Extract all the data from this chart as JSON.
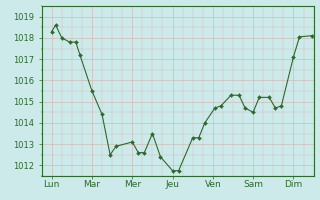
{
  "x_labels": [
    "Lun",
    "Mar",
    "Mer",
    "Jeu",
    "Ven",
    "Sam",
    "Dim"
  ],
  "x_positions": [
    0,
    1,
    2,
    3,
    4,
    5,
    6
  ],
  "data_x": [
    0.0,
    0.1,
    0.25,
    0.45,
    0.6,
    0.7,
    1.0,
    1.25,
    1.45,
    1.6,
    2.0,
    2.15,
    2.3,
    2.5,
    2.7,
    3.0,
    3.15,
    3.5,
    3.65,
    3.8,
    4.05,
    4.2,
    4.45,
    4.65,
    4.8,
    5.0,
    5.15,
    5.4,
    5.55,
    5.7,
    6.0,
    6.15,
    6.45
  ],
  "data_y": [
    1018.3,
    1018.6,
    1018.0,
    1017.8,
    1017.8,
    1017.2,
    1015.5,
    1014.4,
    1012.5,
    1012.9,
    1013.1,
    1012.6,
    1012.6,
    1013.5,
    1012.4,
    1011.75,
    1011.75,
    1013.3,
    1013.3,
    1014.0,
    1014.7,
    1014.8,
    1015.3,
    1015.3,
    1014.7,
    1014.5,
    1015.2,
    1015.2,
    1014.7,
    1014.8,
    1017.1,
    1018.05,
    1018.1
  ],
  "line_color": "#2d6a2d",
  "marker_color": "#2d6a2d",
  "bg_color": "#cceaea",
  "grid_major_color": "#b8d0c8",
  "grid_minor_color": "#c8dcd8",
  "axis_color": "#2d6a2d",
  "tick_color": "#2d6a2d",
  "ylim": [
    1011.5,
    1019.5
  ],
  "yticks": [
    1012,
    1013,
    1014,
    1015,
    1016,
    1017,
    1018,
    1019
  ],
  "xlim": [
    -0.25,
    6.5
  ],
  "label_fontsize": 6.5,
  "tick_fontsize": 6.0
}
